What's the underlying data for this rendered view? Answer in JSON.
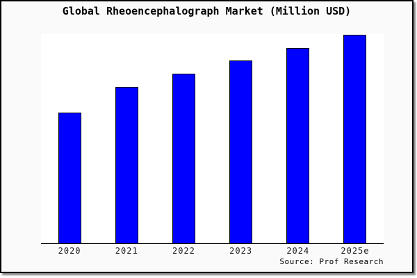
{
  "colors": {
    "bar_fill": "#0000ff",
    "bar_border": "#000000",
    "frame_bg": "#fafafa",
    "plot_bg": "#ffffff",
    "axis": "#000000"
  },
  "chart_data": {
    "type": "bar",
    "title": "Global Rheoencephalograph Market (Million USD)",
    "categories": [
      "2020",
      "2021",
      "2022",
      "2023",
      "2024",
      "2025e"
    ],
    "values": [
      62.8,
      75.1,
      81.6,
      87.8,
      93.8,
      100
    ],
    "units": "relative height (chart shows no y-axis scale; 2025e normalized to 100)",
    "xlabel": "",
    "ylabel": "",
    "ylim": [
      0,
      100.5
    ],
    "grid": false,
    "legend": false,
    "y_axis_visible": false,
    "source": "Source: Prof Research"
  }
}
